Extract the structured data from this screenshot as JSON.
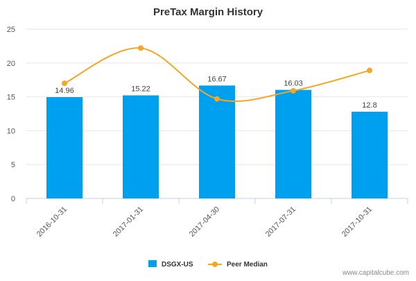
{
  "chart_data": {
    "type": "bar",
    "title": "PreTax Margin History",
    "categories": [
      "2016-10-31",
      "2017-01-31",
      "2017-04-30",
      "2017-07-31",
      "2017-10-31"
    ],
    "series": [
      {
        "name": "DSGX-US",
        "type": "bar",
        "color": "#00a0f0",
        "values": [
          14.96,
          15.22,
          16.67,
          16.03,
          12.8
        ],
        "data_labels": [
          "14.96",
          "15.22",
          "16.67",
          "16.03",
          "12.8"
        ]
      },
      {
        "name": "Peer Median",
        "type": "line",
        "color": "#f5a623",
        "values": [
          17.0,
          22.2,
          14.7,
          15.9,
          18.9
        ]
      }
    ],
    "ylim": [
      0,
      25
    ],
    "yticks": [
      0,
      5,
      10,
      15,
      20,
      25
    ],
    "grid": "horizontal",
    "legend_position": "bottom-center"
  },
  "watermark": "www.capitalcube.com"
}
